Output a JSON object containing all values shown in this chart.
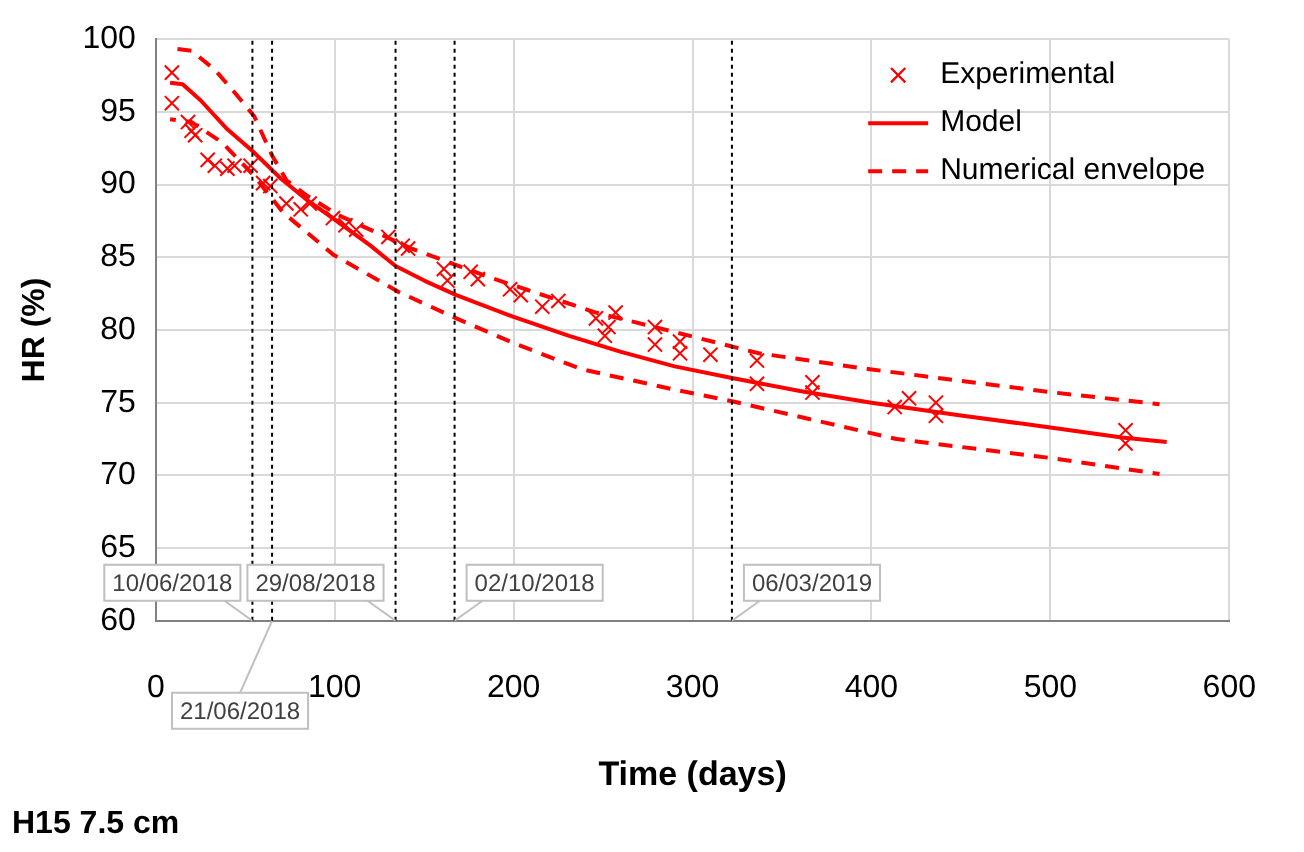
{
  "chart_data": {
    "type": "scatter",
    "xlabel": "Time (days)",
    "ylabel": "HR (%)",
    "xlim": [
      0,
      600
    ],
    "xticks": [
      0,
      100,
      200,
      300,
      400,
      500,
      600
    ],
    "ylim": [
      60,
      100
    ],
    "yticks": [
      60,
      65,
      70,
      75,
      80,
      85,
      90,
      95,
      100
    ],
    "grid": true,
    "legend": "top right",
    "annotations": [
      "H15 7.5 cm",
      {
        "text": "10/06/2018",
        "x": 54,
        "y": 60
      },
      {
        "text": "21/06/2018",
        "x": 65,
        "y": 60
      },
      {
        "text": "29/08/2018",
        "x": 134,
        "y": 60
      },
      {
        "text": "02/10/2018",
        "x": 167,
        "y": 60
      },
      {
        "text": "06/03/2019",
        "x": 322,
        "y": 60
      }
    ],
    "ref_lines": [
      {
        "axis": "x",
        "value": 54,
        "color": "#000000",
        "line_style": "dotted"
      },
      {
        "axis": "x",
        "value": 65,
        "color": "#000000",
        "line_style": "dotted"
      },
      {
        "axis": "x",
        "value": 134,
        "color": "#000000",
        "line_style": "dotted"
      },
      {
        "axis": "x",
        "value": 167,
        "color": "#000000",
        "line_style": "dotted"
      },
      {
        "axis": "x",
        "value": 322,
        "color": "#000000",
        "line_style": "dotted"
      }
    ],
    "series": [
      {
        "name": "Experimental",
        "marker": "cross",
        "color": "#ff0000",
        "x": [
          9,
          9,
          18,
          20,
          22,
          29,
          33,
          40,
          44,
          53,
          60,
          64,
          73,
          81,
          86,
          99,
          106,
          112,
          130,
          138,
          141,
          161,
          163,
          176,
          180,
          198,
          204,
          216,
          225,
          246,
          251,
          253,
          257,
          279,
          279,
          293,
          293,
          310,
          336,
          336,
          367,
          367,
          413,
          421,
          436,
          436,
          542,
          542
        ],
        "values": [
          97.7,
          95.6,
          94.3,
          93.7,
          93.4,
          91.7,
          91.3,
          91.1,
          91.3,
          91.3,
          90.1,
          89.9,
          88.7,
          88.3,
          88.7,
          87.7,
          87.2,
          86.9,
          86.4,
          85.8,
          85.6,
          84.2,
          83.4,
          84,
          83.5,
          82.8,
          82.4,
          81.6,
          82,
          80.8,
          79.6,
          80.2,
          81.2,
          80.2,
          79,
          79.2,
          78.4,
          78.3,
          77.9,
          76.3,
          76.4,
          75.7,
          74.7,
          75.3,
          75,
          74.1,
          73.1,
          72.2
        ]
      },
      {
        "name": "Model",
        "type": "line",
        "marker": "none",
        "line_style": "solid",
        "color": "#ff0000",
        "x": [
          8,
          15,
          25,
          40,
          55,
          70,
          85,
          100,
          120,
          134,
          150,
          168,
          200,
          231,
          260,
          290,
          322,
          360,
          400,
          451,
          500,
          540,
          565
        ],
        "values": [
          97,
          96.9,
          95.8,
          93.8,
          92.2,
          90.4,
          88.9,
          87.6,
          85.8,
          84.4,
          83.4,
          82.4,
          80.9,
          79.6,
          78.5,
          77.5,
          76.7,
          75.8,
          75,
          74.1,
          73.3,
          72.6,
          72.3
        ]
      },
      {
        "name": "Numerical envelope",
        "type": "line",
        "marker": "none",
        "line_style": "dashed",
        "color": "#ff0000",
        "x": [
          8,
          20,
          33,
          45,
          55,
          65,
          73,
          85,
          102,
          143,
          187,
          246,
          279,
          337,
          399,
          502,
          561
        ],
        "values": [
          99.4,
          99.2,
          97.9,
          96.2,
          94.7,
          92,
          90.3,
          89.2,
          87.9,
          85.6,
          83.6,
          81.2,
          80.2,
          78.4,
          77.3,
          75.7,
          74.9
        ]
      },
      {
        "type": "line",
        "marker": "none",
        "line_style": "dashed",
        "color": "#ff0000",
        "x": [
          8,
          20,
          37,
          55,
          71,
          99,
          136,
          168,
          202,
          238,
          290,
          322,
          414,
          500,
          561
        ],
        "values": [
          94.5,
          94.3,
          92.9,
          90.6,
          88.1,
          85.2,
          82.6,
          80.8,
          79,
          77.3,
          75.9,
          75.1,
          72.5,
          71.2,
          70.1
        ]
      }
    ]
  }
}
